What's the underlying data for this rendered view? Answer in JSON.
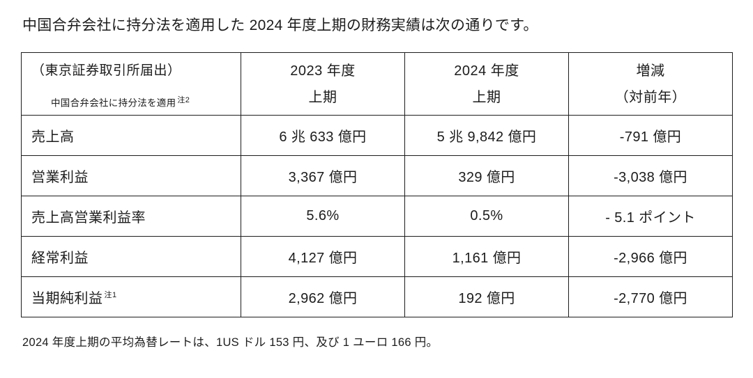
{
  "title": "中国合弁会社に持分法を適用した 2024 年度上期の財務実績は次の通りです。",
  "table": {
    "header": {
      "col1_line1": "（東京証券取引所届出）",
      "col1_line2": "中国合弁会社に持分法を適用",
      "col1_note": "注2",
      "col2_line1": "2023 年度",
      "col2_line2": "上期",
      "col3_line1": "2024 年度",
      "col3_line2": "上期",
      "col4_line1": "増減",
      "col4_line2": "（対前年）"
    },
    "rows": [
      {
        "label": "売上高",
        "note": "",
        "y2023": "6 兆 633 億円",
        "y2024": "5 兆 9,842 億円",
        "change": "-791 億円"
      },
      {
        "label": "営業利益",
        "note": "",
        "y2023": "3,367 億円",
        "y2024": "329 億円",
        "change": "-3,038 億円"
      },
      {
        "label": "売上高営業利益率",
        "note": "",
        "y2023": "5.6%",
        "y2024": "0.5%",
        "change": "- 5.1 ポイント"
      },
      {
        "label": "経常利益",
        "note": "",
        "y2023": "4,127 億円",
        "y2024": "1,161 億円",
        "change": "-2,966 億円"
      },
      {
        "label": "当期純利益",
        "note": "注1",
        "y2023": "2,962 億円",
        "y2024": "192 億円",
        "change": "-2,770 億円"
      }
    ]
  },
  "footer": "2024 年度上期の平均為替レートは、1US ドル 153 円、及び 1 ユーロ 166 円。"
}
